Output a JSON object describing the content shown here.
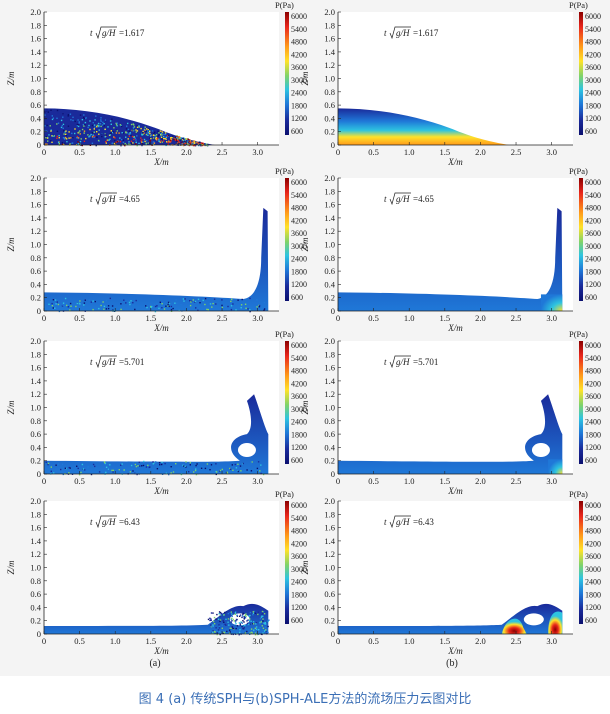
{
  "caption": "图 4 (a) 传统SPH与(b)SPH-ALE方法的流场压力云图对比",
  "columns": [
    "(a)",
    "(b)"
  ],
  "axes": {
    "xlabel": "X/m",
    "ylabel": "Z/m",
    "xticks": [
      "0",
      "0.5",
      "1.0",
      "1.5",
      "2.0",
      "2.5",
      "3.0"
    ],
    "yticks": [
      "0",
      "0.2",
      "0.4",
      "0.6",
      "0.8",
      "1.0",
      "1.2",
      "1.4",
      "1.6",
      "1.8",
      "2.0"
    ]
  },
  "colorbar": {
    "title": "P(Pa)",
    "ticks": [
      "6000",
      "5400",
      "4800",
      "4200",
      "3600",
      "3000",
      "2400",
      "1800",
      "1200",
      "600"
    ],
    "colors": [
      "#8b0000",
      "#e8251b",
      "#ff9a1a",
      "#ffe22a",
      "#7fd36a",
      "#2ec4e0",
      "#1f78d8",
      "#1a2a9a",
      "#0b0f6e"
    ]
  },
  "times": [
    "1.617",
    "4.65",
    "5.701",
    "6.43"
  ],
  "time_prefix": "t",
  "time_expr": "g/H",
  "time_eq": "=",
  "colors": {
    "caption": "#3b6fb6",
    "panel_background": "#f4f4f4"
  }
}
